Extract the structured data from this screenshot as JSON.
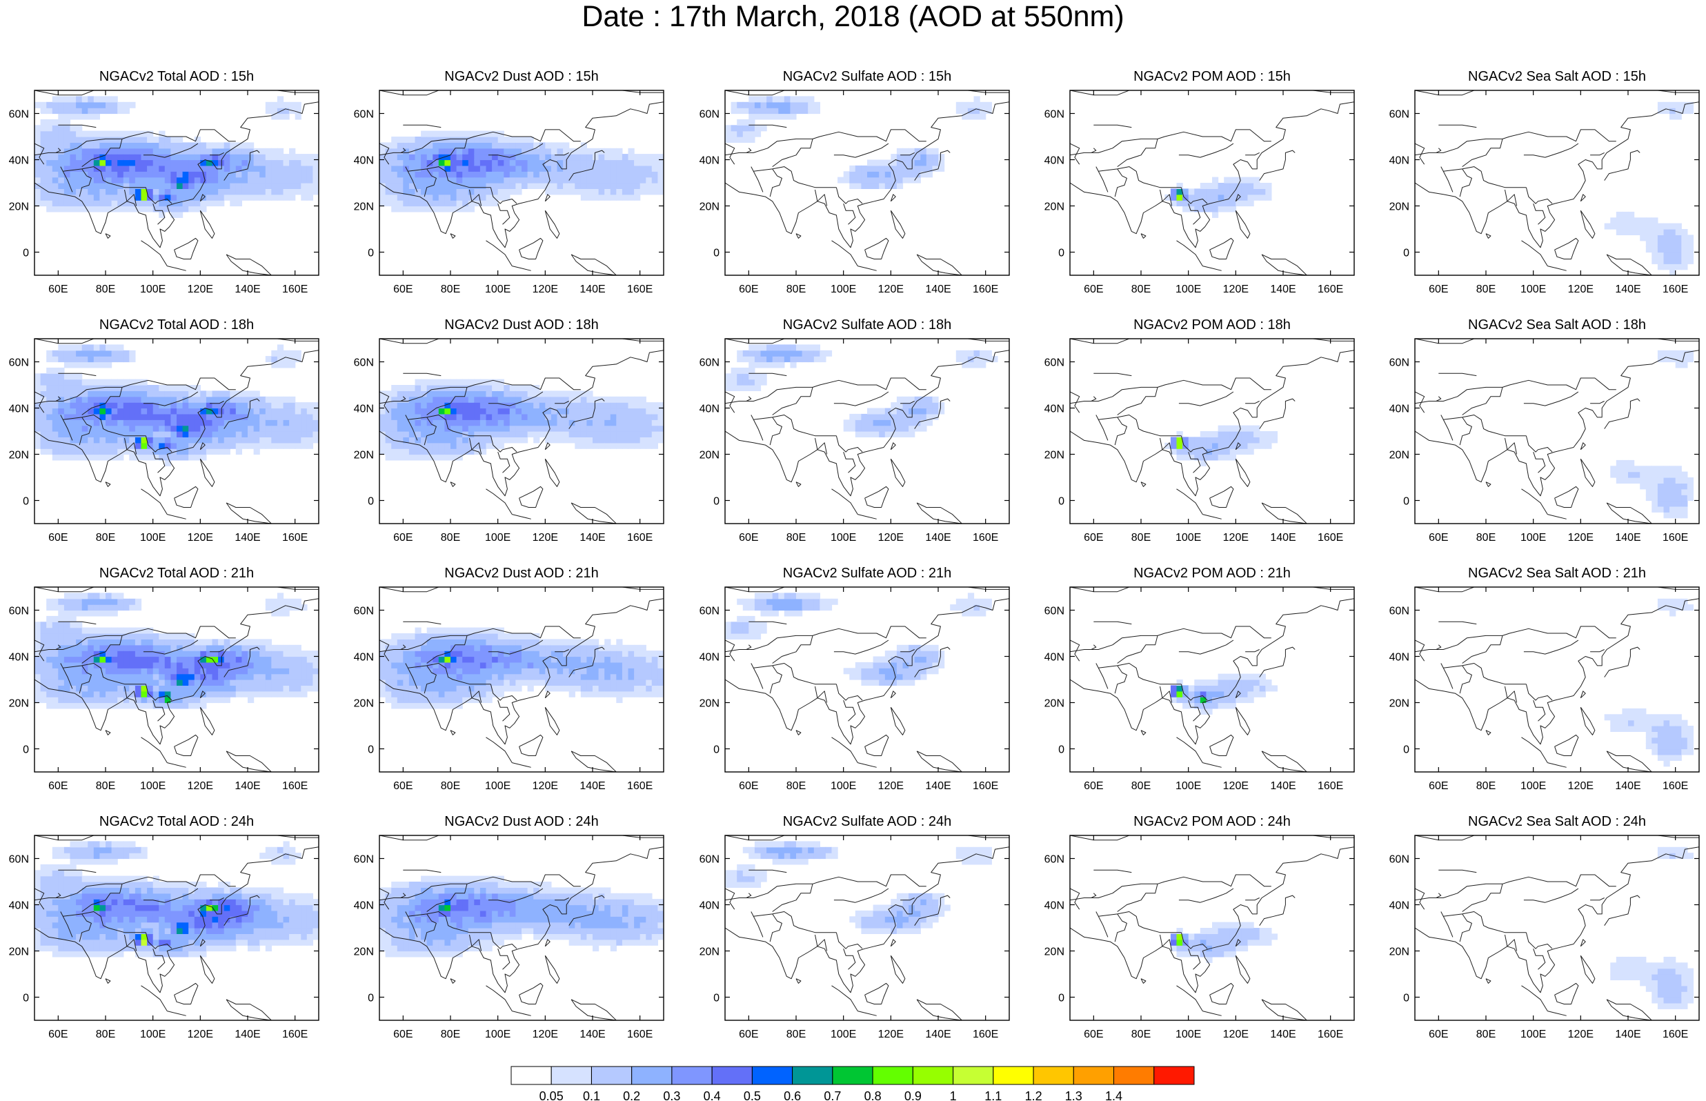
{
  "figure": {
    "title": "Date : 17th March, 2018 (AOD at 550nm)"
  },
  "chart_data": {
    "type": "heatmap",
    "variable": "AOD at 550nm",
    "x_ticks": [
      "60E",
      "80E",
      "100E",
      "120E",
      "140E",
      "160E"
    ],
    "y_ticks": [
      "60N",
      "40N",
      "20N",
      "0"
    ],
    "xlim": [
      50,
      170
    ],
    "ylim": [
      -10,
      70
    ],
    "grid": false,
    "colorbar": {
      "levels": [
        "0.05",
        "0.1",
        "0.2",
        "0.3",
        "0.4",
        "0.5",
        "0.6",
        "0.7",
        "0.8",
        "0.9",
        "1",
        "1.1",
        "1.2",
        "1.3",
        "1.4"
      ],
      "colors": [
        "#ffffff",
        "#d6e2ff",
        "#b5c9ff",
        "#8eb2ff",
        "#7f96ff",
        "#6370f8",
        "#0063ff",
        "#009696",
        "#00c633",
        "#63ff00",
        "#96ff00",
        "#c6ff33",
        "#ffff00",
        "#ffc600",
        "#ffa000",
        "#ff7c00",
        "#ff1900"
      ]
    },
    "panels": [
      {
        "title": "NGACv2 Total AOD : 15h",
        "species": "total",
        "hour": 15
      },
      {
        "title": "NGACv2 Dust AOD : 15h",
        "species": "dust",
        "hour": 15
      },
      {
        "title": "NGACv2 Sulfate AOD : 15h",
        "species": "sulfate",
        "hour": 15
      },
      {
        "title": "NGACv2 POM AOD : 15h",
        "species": "pom",
        "hour": 15
      },
      {
        "title": "NGACv2 Sea Salt AOD : 15h",
        "species": "seasalt",
        "hour": 15
      },
      {
        "title": "NGACv2 Total AOD : 18h",
        "species": "total",
        "hour": 18
      },
      {
        "title": "NGACv2 Dust AOD : 18h",
        "species": "dust",
        "hour": 18
      },
      {
        "title": "NGACv2 Sulfate AOD : 18h",
        "species": "sulfate",
        "hour": 18
      },
      {
        "title": "NGACv2 POM AOD : 18h",
        "species": "pom",
        "hour": 18
      },
      {
        "title": "NGACv2 Sea Salt AOD : 18h",
        "species": "seasalt",
        "hour": 18
      },
      {
        "title": "NGACv2 Total AOD : 21h",
        "species": "total",
        "hour": 21
      },
      {
        "title": "NGACv2 Dust AOD : 21h",
        "species": "dust",
        "hour": 21
      },
      {
        "title": "NGACv2 Sulfate AOD : 21h",
        "species": "sulfate",
        "hour": 21
      },
      {
        "title": "NGACv2 POM AOD : 21h",
        "species": "pom",
        "hour": 21
      },
      {
        "title": "NGACv2 Sea Salt AOD : 21h",
        "species": "seasalt",
        "hour": 21
      },
      {
        "title": "NGACv2 Total AOD : 24h",
        "species": "total",
        "hour": 24
      },
      {
        "title": "NGACv2 Dust AOD : 24h",
        "species": "dust",
        "hour": 24
      },
      {
        "title": "NGACv2 Sulfate AOD : 24h",
        "species": "sulfate",
        "hour": 24
      },
      {
        "title": "NGACv2 POM AOD : 24h",
        "species": "pom",
        "hour": 24
      },
      {
        "title": "NGACv2 Sea Salt  AOD : 24h",
        "species": "seasalt",
        "hour": 24
      }
    ]
  }
}
